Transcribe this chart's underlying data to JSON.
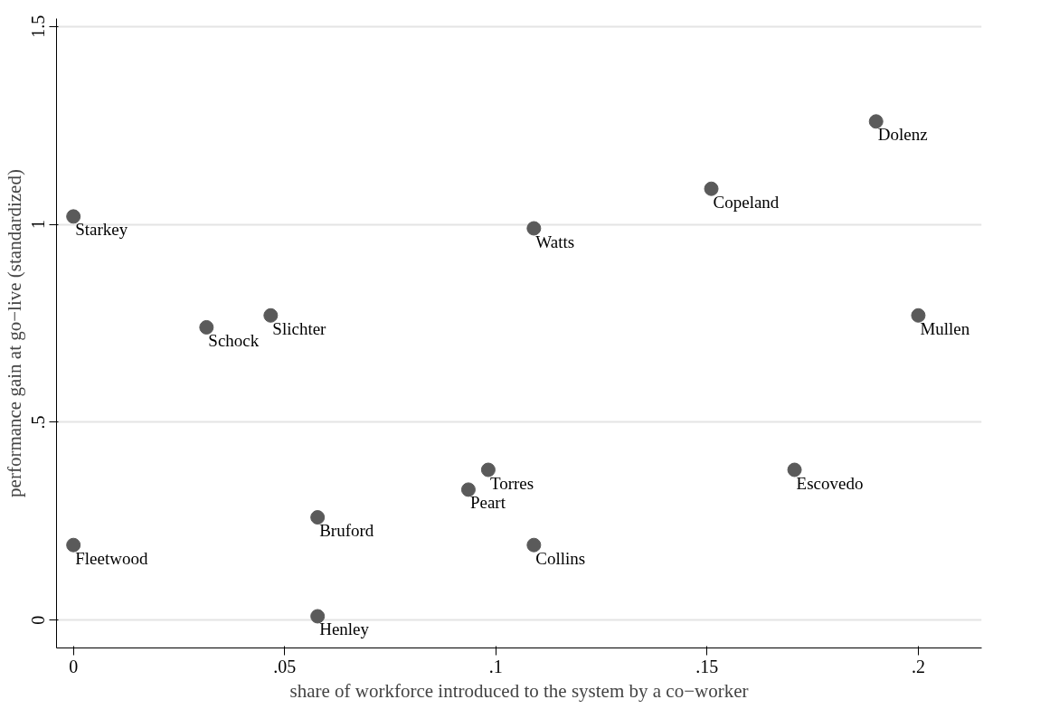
{
  "chart_data": {
    "type": "scatter",
    "xlabel": "share of workforce introduced to the system by a co−worker",
    "ylabel": "performance gain at go−live (standardized)",
    "x": [
      0,
      0.0315,
      0.0467,
      0.109,
      0.151,
      0.19,
      0.2,
      0.1707,
      0.0982,
      0.0935,
      0.0578,
      0.109,
      0,
      0.0578
    ],
    "series": [
      {
        "color": "#5a5a5a",
        "values": [
          1.02,
          0.74,
          0.77,
          0.99,
          1.09,
          1.26,
          0.77,
          0.38,
          0.38,
          0.33,
          0.26,
          0.19,
          0.19,
          0.01
        ]
      }
    ],
    "annotations": [
      {
        "text": "Starkey",
        "x": 0,
        "y": 1.02
      },
      {
        "text": "Schock",
        "x": 0.0315,
        "y": 0.74
      },
      {
        "text": "Slichter",
        "x": 0.0467,
        "y": 0.77
      },
      {
        "text": "Watts",
        "x": 0.109,
        "y": 0.99
      },
      {
        "text": "Copeland",
        "x": 0.151,
        "y": 1.09
      },
      {
        "text": "Dolenz",
        "x": 0.19,
        "y": 1.26
      },
      {
        "text": "Mullen",
        "x": 0.2,
        "y": 0.77
      },
      {
        "text": "Escovedo",
        "x": 0.1707,
        "y": 0.38
      },
      {
        "text": "Torres",
        "x": 0.0982,
        "y": 0.38
      },
      {
        "text": "Peart",
        "x": 0.0935,
        "y": 0.33
      },
      {
        "text": "Bruford",
        "x": 0.0578,
        "y": 0.26
      },
      {
        "text": "Collins",
        "x": 0.109,
        "y": 0.19
      },
      {
        "text": "Fleetwood",
        "x": 0,
        "y": 0.19
      },
      {
        "text": "Henley",
        "x": 0.0578,
        "y": 0.01
      }
    ],
    "xlim": [
      -0.004,
      0.215
    ],
    "ylim": [
      -0.07,
      1.52
    ],
    "xticks": [
      {
        "value": 0,
        "label": "0"
      },
      {
        "value": 0.05,
        "label": ".05"
      },
      {
        "value": 0.1,
        "label": ".1"
      },
      {
        "value": 0.15,
        "label": ".15"
      },
      {
        "value": 0.2,
        "label": ".2"
      }
    ],
    "yticks": [
      0,
      {
        "value": 0.5,
        "label": ".5"
      },
      1,
      1.5
    ],
    "grid": "y",
    "marker": "circle"
  }
}
